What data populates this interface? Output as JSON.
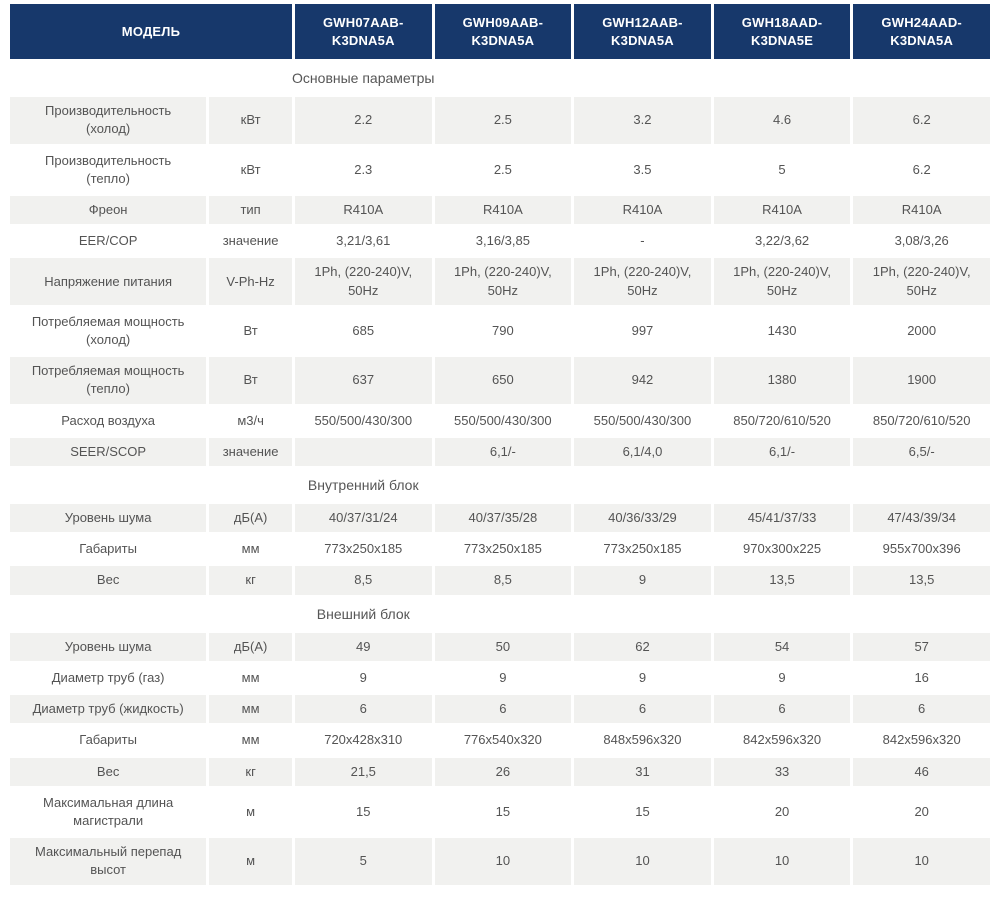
{
  "colors": {
    "header_bg": "#17386b",
    "header_text": "#ffffff",
    "shaded_row_bg": "#f1f1ef",
    "body_text": "#545454"
  },
  "table": {
    "header": {
      "model_label": "МОДЕЛЬ",
      "models": [
        "GWH07AAB-K3DNA5A",
        "GWH09AAB-K3DNA5A",
        "GWH12AAB-K3DNA5A",
        "GWH18AAD-K3DNA5E",
        "GWH24AAD-K3DNA5A"
      ]
    },
    "sections": [
      {
        "title": "Основные параметры",
        "rows": [
          {
            "param": "Производительность (холод)",
            "unit": "кВт",
            "values": [
              "2.2",
              "2.5",
              "3.2",
              "4.6",
              "6.2"
            ]
          },
          {
            "param": "Производительность (тепло)",
            "unit": "кВт",
            "values": [
              "2.3",
              "2.5",
              "3.5",
              "5",
              "6.2"
            ]
          },
          {
            "param": "Фреон",
            "unit": "тип",
            "values": [
              "R410A",
              "R410A",
              "R410A",
              "R410A",
              "R410A"
            ]
          },
          {
            "param": "EER/COP",
            "unit": "значение",
            "values": [
              "3,21/3,61",
              "3,16/3,85",
              "-",
              "3,22/3,62",
              "3,08/3,26"
            ]
          },
          {
            "param": "Напряжение питания",
            "unit": "V-Ph-Hz",
            "values": [
              "1Ph, (220-240)V, 50Hz",
              "1Ph, (220-240)V, 50Hz",
              "1Ph, (220-240)V, 50Hz",
              "1Ph, (220-240)V, 50Hz",
              "1Ph, (220-240)V, 50Hz"
            ]
          },
          {
            "param": "Потребляемая мощность (холод)",
            "unit": "Вт",
            "values": [
              "685",
              "790",
              "997",
              "1430",
              "2000"
            ]
          },
          {
            "param": "Потребляемая мощность (тепло)",
            "unit": "Вт",
            "values": [
              "637",
              "650",
              "942",
              "1380",
              "1900"
            ]
          },
          {
            "param": "Расход воздуха",
            "unit": "м3/ч",
            "values": [
              "550/500/430/300",
              "550/500/430/300",
              "550/500/430/300",
              "850/720/610/520",
              "850/720/610/520"
            ]
          },
          {
            "param": "SEER/SCOP",
            "unit": "значение",
            "values": [
              "",
              "6,1/-",
              "6,1/4,0",
              "6,1/-",
              "6,5/-"
            ]
          }
        ]
      },
      {
        "title": "Внутренний блок",
        "rows": [
          {
            "param": "Уровень шума",
            "unit": "дБ(А)",
            "values": [
              "40/37/31/24",
              "40/37/35/28",
              "40/36/33/29",
              "45/41/37/33",
              "47/43/39/34"
            ]
          },
          {
            "param": "Габариты",
            "unit": "мм",
            "values": [
              "773x250x185",
              "773x250x185",
              "773x250x185",
              "970x300x225",
              "955x700x396"
            ]
          },
          {
            "param": "Вес",
            "unit": "кг",
            "values": [
              "8,5",
              "8,5",
              "9",
              "13,5",
              "13,5"
            ]
          }
        ]
      },
      {
        "title": "Внешний блок",
        "rows": [
          {
            "param": "Уровень шума",
            "unit": "дБ(А)",
            "values": [
              "49",
              "50",
              "62",
              "54",
              "57"
            ]
          },
          {
            "param": "Диаметр труб (газ)",
            "unit": "мм",
            "values": [
              "9",
              "9",
              "9",
              "9",
              "16"
            ]
          },
          {
            "param": "Диаметр труб (жидкость)",
            "unit": "мм",
            "values": [
              "6",
              "6",
              "6",
              "6",
              "6"
            ]
          },
          {
            "param": "Габариты",
            "unit": "мм",
            "values": [
              "720x428x310",
              "776x540x320",
              "848x596x320",
              "842x596x320",
              "842x596x320"
            ]
          },
          {
            "param": "Вес",
            "unit": "кг",
            "values": [
              "21,5",
              "26",
              "31",
              "33",
              "46"
            ]
          },
          {
            "param": "Максимальная длина магистрали",
            "unit": "м",
            "values": [
              "15",
              "15",
              "15",
              "20",
              "20"
            ]
          },
          {
            "param": "Максимальный перепад высот",
            "unit": "м",
            "values": [
              "5",
              "10",
              "10",
              "10",
              "10"
            ]
          }
        ]
      }
    ]
  }
}
